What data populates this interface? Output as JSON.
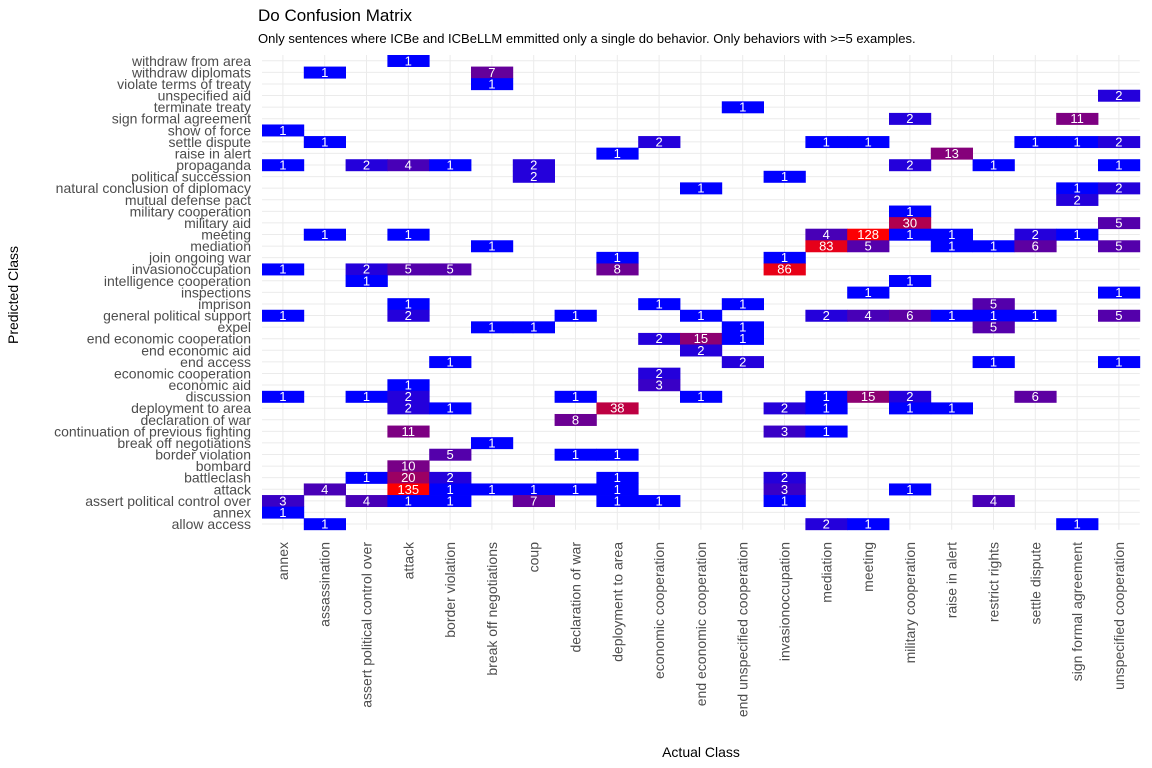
{
  "chart_data": {
    "type": "heatmap",
    "title": "Do Confusion Matrix",
    "subtitle": "Only sentences where ICBe and ICBeLLM emmitted only a single do behavior. Only behaviors with >=5 examples.",
    "xlabel": "Actual Class",
    "ylabel": "Predicted Class",
    "x_categories": [
      "annex",
      "assassination",
      "assert political control over",
      "attack",
      "border violation",
      "break off negotiations",
      "coup",
      "declaration of war",
      "deployment to area",
      "economic cooperation",
      "end economic cooperation",
      "end unspecified cooperation",
      "invasionoccupation",
      "mediation",
      "meeting",
      "military cooperation",
      "raise in alert",
      "restrict rights",
      "settle dispute",
      "sign formal agreement",
      "unspecified cooperation"
    ],
    "y_categories": [
      "withdraw from area",
      "withdraw diplomats",
      "violate terms of treaty",
      "unspecified aid",
      "terminate treaty",
      "sign formal agreement",
      "show of force",
      "settle dispute",
      "raise in alert",
      "propaganda",
      "political succession",
      "natural conclusion of diplomacy",
      "mutual defense pact",
      "military cooperation",
      "military aid",
      "meeting",
      "mediation",
      "join ongoing war",
      "invasionoccupation",
      "intelligence cooperation",
      "inspections",
      "imprison",
      "general political support",
      "expel",
      "end economic cooperation",
      "end economic aid",
      "end access",
      "economic cooperation",
      "economic aid",
      "discussion",
      "deployment to area",
      "declaration of war",
      "continuation of previous fighting",
      "break off negotiations",
      "border violation",
      "bombard",
      "battleclash",
      "attack",
      "assert political control over",
      "annex",
      "allow access"
    ],
    "color_scale": {
      "low": "#0000ff",
      "high": "#ff0000",
      "min": 1,
      "max": 135
    },
    "cells": [
      {
        "x": "attack",
        "y": "withdraw from area",
        "value": 1
      },
      {
        "x": "assassination",
        "y": "withdraw diplomats",
        "value": 1
      },
      {
        "x": "break off negotiations",
        "y": "withdraw diplomats",
        "value": 7
      },
      {
        "x": "break off negotiations",
        "y": "violate terms of treaty",
        "value": 1
      },
      {
        "x": "unspecified cooperation",
        "y": "unspecified aid",
        "value": 2
      },
      {
        "x": "end unspecified cooperation",
        "y": "terminate treaty",
        "value": 1
      },
      {
        "x": "military cooperation",
        "y": "sign formal agreement",
        "value": 2
      },
      {
        "x": "sign formal agreement",
        "y": "sign formal agreement",
        "value": 11
      },
      {
        "x": "annex",
        "y": "show of force",
        "value": 1
      },
      {
        "x": "assassination",
        "y": "settle dispute",
        "value": 1
      },
      {
        "x": "economic cooperation",
        "y": "settle dispute",
        "value": 2
      },
      {
        "x": "mediation",
        "y": "settle dispute",
        "value": 1
      },
      {
        "x": "meeting",
        "y": "settle dispute",
        "value": 1
      },
      {
        "x": "settle dispute",
        "y": "settle dispute",
        "value": 1
      },
      {
        "x": "sign formal agreement",
        "y": "settle dispute",
        "value": 1
      },
      {
        "x": "unspecified cooperation",
        "y": "settle dispute",
        "value": 2
      },
      {
        "x": "deployment to area",
        "y": "raise in alert",
        "value": 1
      },
      {
        "x": "raise in alert",
        "y": "raise in alert",
        "value": 13
      },
      {
        "x": "annex",
        "y": "propaganda",
        "value": 1
      },
      {
        "x": "assert political control over",
        "y": "propaganda",
        "value": 2
      },
      {
        "x": "attack",
        "y": "propaganda",
        "value": 4
      },
      {
        "x": "border violation",
        "y": "propaganda",
        "value": 1
      },
      {
        "x": "coup",
        "y": "propaganda",
        "value": 2
      },
      {
        "x": "military cooperation",
        "y": "propaganda",
        "value": 2
      },
      {
        "x": "restrict rights",
        "y": "propaganda",
        "value": 1
      },
      {
        "x": "unspecified cooperation",
        "y": "propaganda",
        "value": 1
      },
      {
        "x": "coup",
        "y": "political succession",
        "value": 2
      },
      {
        "x": "invasionoccupation",
        "y": "political succession",
        "value": 1
      },
      {
        "x": "end economic cooperation",
        "y": "natural conclusion of diplomacy",
        "value": 1
      },
      {
        "x": "sign formal agreement",
        "y": "natural conclusion of diplomacy",
        "value": 1
      },
      {
        "x": "unspecified cooperation",
        "y": "natural conclusion of diplomacy",
        "value": 2
      },
      {
        "x": "sign formal agreement",
        "y": "mutual defense pact",
        "value": 2
      },
      {
        "x": "military cooperation",
        "y": "military cooperation",
        "value": 1
      },
      {
        "x": "military cooperation",
        "y": "military aid",
        "value": 30
      },
      {
        "x": "unspecified cooperation",
        "y": "military aid",
        "value": 5
      },
      {
        "x": "assassination",
        "y": "meeting",
        "value": 1
      },
      {
        "x": "attack",
        "y": "meeting",
        "value": 1
      },
      {
        "x": "mediation",
        "y": "meeting",
        "value": 4
      },
      {
        "x": "meeting",
        "y": "meeting",
        "value": 128
      },
      {
        "x": "military cooperation",
        "y": "meeting",
        "value": 1
      },
      {
        "x": "raise in alert",
        "y": "meeting",
        "value": 1
      },
      {
        "x": "settle dispute",
        "y": "meeting",
        "value": 2
      },
      {
        "x": "sign formal agreement",
        "y": "meeting",
        "value": 1
      },
      {
        "x": "break off negotiations",
        "y": "mediation",
        "value": 1
      },
      {
        "x": "mediation",
        "y": "mediation",
        "value": 83
      },
      {
        "x": "meeting",
        "y": "mediation",
        "value": 5
      },
      {
        "x": "raise in alert",
        "y": "mediation",
        "value": 1
      },
      {
        "x": "restrict rights",
        "y": "mediation",
        "value": 1
      },
      {
        "x": "settle dispute",
        "y": "mediation",
        "value": 6
      },
      {
        "x": "unspecified cooperation",
        "y": "mediation",
        "value": 5
      },
      {
        "x": "deployment to area",
        "y": "join ongoing war",
        "value": 1
      },
      {
        "x": "invasionoccupation",
        "y": "join ongoing war",
        "value": 1
      },
      {
        "x": "annex",
        "y": "invasionoccupation",
        "value": 1
      },
      {
        "x": "assert political control over",
        "y": "invasionoccupation",
        "value": 2
      },
      {
        "x": "attack",
        "y": "invasionoccupation",
        "value": 5
      },
      {
        "x": "border violation",
        "y": "invasionoccupation",
        "value": 5
      },
      {
        "x": "deployment to area",
        "y": "invasionoccupation",
        "value": 8
      },
      {
        "x": "invasionoccupation",
        "y": "invasionoccupation",
        "value": 86
      },
      {
        "x": "assert political control over",
        "y": "intelligence cooperation",
        "value": 1
      },
      {
        "x": "military cooperation",
        "y": "intelligence cooperation",
        "value": 1
      },
      {
        "x": "meeting",
        "y": "inspections",
        "value": 1
      },
      {
        "x": "unspecified cooperation",
        "y": "inspections",
        "value": 1
      },
      {
        "x": "attack",
        "y": "imprison",
        "value": 1
      },
      {
        "x": "economic cooperation",
        "y": "imprison",
        "value": 1
      },
      {
        "x": "end unspecified cooperation",
        "y": "imprison",
        "value": 1
      },
      {
        "x": "restrict rights",
        "y": "imprison",
        "value": 5
      },
      {
        "x": "annex",
        "y": "general political support",
        "value": 1
      },
      {
        "x": "attack",
        "y": "general political support",
        "value": 2
      },
      {
        "x": "declaration of war",
        "y": "general political support",
        "value": 1
      },
      {
        "x": "end economic cooperation",
        "y": "general political support",
        "value": 1
      },
      {
        "x": "mediation",
        "y": "general political support",
        "value": 2
      },
      {
        "x": "meeting",
        "y": "general political support",
        "value": 4
      },
      {
        "x": "military cooperation",
        "y": "general political support",
        "value": 6
      },
      {
        "x": "raise in alert",
        "y": "general political support",
        "value": 1
      },
      {
        "x": "restrict rights",
        "y": "general political support",
        "value": 1
      },
      {
        "x": "settle dispute",
        "y": "general political support",
        "value": 1
      },
      {
        "x": "unspecified cooperation",
        "y": "general political support",
        "value": 5
      },
      {
        "x": "break off negotiations",
        "y": "expel",
        "value": 1
      },
      {
        "x": "coup",
        "y": "expel",
        "value": 1
      },
      {
        "x": "end unspecified cooperation",
        "y": "expel",
        "value": 1
      },
      {
        "x": "restrict rights",
        "y": "expel",
        "value": 5
      },
      {
        "x": "economic cooperation",
        "y": "end economic cooperation",
        "value": 2
      },
      {
        "x": "end economic cooperation",
        "y": "end economic cooperation",
        "value": 15
      },
      {
        "x": "end unspecified cooperation",
        "y": "end economic cooperation",
        "value": 1
      },
      {
        "x": "end economic cooperation",
        "y": "end economic aid",
        "value": 2
      },
      {
        "x": "border violation",
        "y": "end access",
        "value": 1
      },
      {
        "x": "end unspecified cooperation",
        "y": "end access",
        "value": 2
      },
      {
        "x": "restrict rights",
        "y": "end access",
        "value": 1
      },
      {
        "x": "unspecified cooperation",
        "y": "end access",
        "value": 1
      },
      {
        "x": "economic cooperation",
        "y": "economic cooperation",
        "value": 2
      },
      {
        "x": "attack",
        "y": "economic aid",
        "value": 1
      },
      {
        "x": "economic cooperation",
        "y": "economic aid",
        "value": 3
      },
      {
        "x": "annex",
        "y": "discussion",
        "value": 1
      },
      {
        "x": "assert political control over",
        "y": "discussion",
        "value": 1
      },
      {
        "x": "attack",
        "y": "discussion",
        "value": 2
      },
      {
        "x": "declaration of war",
        "y": "discussion",
        "value": 1
      },
      {
        "x": "end economic cooperation",
        "y": "discussion",
        "value": 1
      },
      {
        "x": "mediation",
        "y": "discussion",
        "value": 1
      },
      {
        "x": "meeting",
        "y": "discussion",
        "value": 15
      },
      {
        "x": "military cooperation",
        "y": "discussion",
        "value": 2
      },
      {
        "x": "settle dispute",
        "y": "discussion",
        "value": 6
      },
      {
        "x": "attack",
        "y": "deployment to area",
        "value": 2
      },
      {
        "x": "border violation",
        "y": "deployment to area",
        "value": 1
      },
      {
        "x": "deployment to area",
        "y": "deployment to area",
        "value": 38
      },
      {
        "x": "invasionoccupation",
        "y": "deployment to area",
        "value": 2
      },
      {
        "x": "mediation",
        "y": "deployment to area",
        "value": 1
      },
      {
        "x": "military cooperation",
        "y": "deployment to area",
        "value": 1
      },
      {
        "x": "raise in alert",
        "y": "deployment to area",
        "value": 1
      },
      {
        "x": "declaration of war",
        "y": "declaration of war",
        "value": 8
      },
      {
        "x": "attack",
        "y": "continuation of previous fighting",
        "value": 11
      },
      {
        "x": "invasionoccupation",
        "y": "continuation of previous fighting",
        "value": 3
      },
      {
        "x": "mediation",
        "y": "continuation of previous fighting",
        "value": 1
      },
      {
        "x": "break off negotiations",
        "y": "break off negotiations",
        "value": 1
      },
      {
        "x": "border violation",
        "y": "border violation",
        "value": 5
      },
      {
        "x": "declaration of war",
        "y": "border violation",
        "value": 1
      },
      {
        "x": "deployment to area",
        "y": "border violation",
        "value": 1
      },
      {
        "x": "attack",
        "y": "bombard",
        "value": 10
      },
      {
        "x": "assert political control over",
        "y": "battleclash",
        "value": 1
      },
      {
        "x": "attack",
        "y": "battleclash",
        "value": 20
      },
      {
        "x": "border violation",
        "y": "battleclash",
        "value": 2
      },
      {
        "x": "deployment to area",
        "y": "battleclash",
        "value": 1
      },
      {
        "x": "invasionoccupation",
        "y": "battleclash",
        "value": 2
      },
      {
        "x": "assassination",
        "y": "attack",
        "value": 4
      },
      {
        "x": "attack",
        "y": "attack",
        "value": 135
      },
      {
        "x": "border violation",
        "y": "attack",
        "value": 1
      },
      {
        "x": "break off negotiations",
        "y": "attack",
        "value": 1
      },
      {
        "x": "coup",
        "y": "attack",
        "value": 1
      },
      {
        "x": "declaration of war",
        "y": "attack",
        "value": 1
      },
      {
        "x": "deployment to area",
        "y": "attack",
        "value": 1
      },
      {
        "x": "invasionoccupation",
        "y": "attack",
        "value": 3
      },
      {
        "x": "military cooperation",
        "y": "attack",
        "value": 1
      },
      {
        "x": "annex",
        "y": "assert political control over",
        "value": 3
      },
      {
        "x": "assert political control over",
        "y": "assert political control over",
        "value": 4
      },
      {
        "x": "attack",
        "y": "assert political control over",
        "value": 1
      },
      {
        "x": "border violation",
        "y": "assert political control over",
        "value": 1
      },
      {
        "x": "coup",
        "y": "assert political control over",
        "value": 7
      },
      {
        "x": "deployment to area",
        "y": "assert political control over",
        "value": 1
      },
      {
        "x": "economic cooperation",
        "y": "assert political control over",
        "value": 1
      },
      {
        "x": "invasionoccupation",
        "y": "assert political control over",
        "value": 1
      },
      {
        "x": "restrict rights",
        "y": "assert political control over",
        "value": 4
      },
      {
        "x": "annex",
        "y": "annex",
        "value": 1
      },
      {
        "x": "assassination",
        "y": "allow access",
        "value": 1
      },
      {
        "x": "mediation",
        "y": "allow access",
        "value": 2
      },
      {
        "x": "meeting",
        "y": "allow access",
        "value": 1
      },
      {
        "x": "sign formal agreement",
        "y": "allow access",
        "value": 1
      }
    ]
  }
}
